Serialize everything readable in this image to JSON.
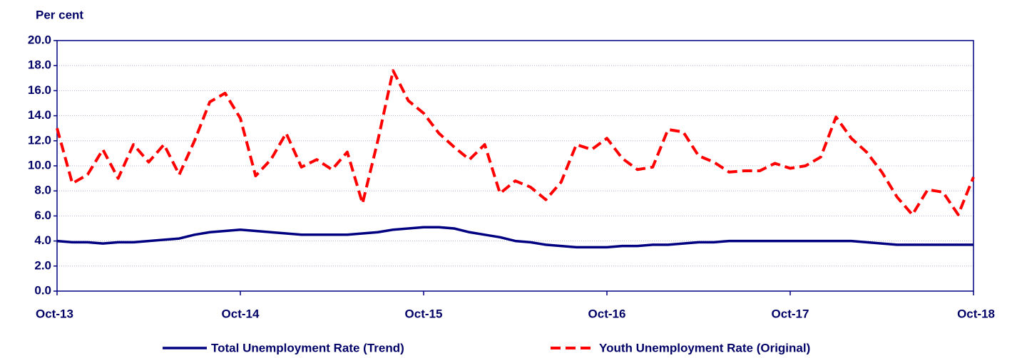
{
  "chart_data": {
    "type": "line",
    "y_label": "Per cent",
    "categories": [
      "Oct-13",
      null,
      null,
      null,
      null,
      null,
      null,
      null,
      null,
      null,
      null,
      null,
      "Oct-14",
      null,
      null,
      null,
      null,
      null,
      null,
      null,
      null,
      null,
      null,
      null,
      "Oct-15",
      null,
      null,
      null,
      null,
      null,
      null,
      null,
      null,
      null,
      null,
      null,
      "Oct-16",
      null,
      null,
      null,
      null,
      null,
      null,
      null,
      null,
      null,
      null,
      null,
      "Oct-17",
      null,
      null,
      null,
      null,
      null,
      null,
      null,
      null,
      null,
      null,
      null,
      "Oct-18"
    ],
    "series": [
      {
        "name": "Total Unemployment Rate (Trend)",
        "color": "#000080",
        "dashed": false,
        "values": [
          4.0,
          3.9,
          3.9,
          3.8,
          3.9,
          3.9,
          4.0,
          4.1,
          4.2,
          4.5,
          4.7,
          4.8,
          4.9,
          4.8,
          4.7,
          4.6,
          4.5,
          4.5,
          4.5,
          4.5,
          4.6,
          4.7,
          4.9,
          5.0,
          5.1,
          5.1,
          5.0,
          4.7,
          4.5,
          4.3,
          4.0,
          3.9,
          3.7,
          3.6,
          3.5,
          3.5,
          3.5,
          3.6,
          3.6,
          3.7,
          3.7,
          3.8,
          3.9,
          3.9,
          4.0,
          4.0,
          4.0,
          4.0,
          4.0,
          4.0,
          4.0,
          4.0,
          4.0,
          3.9,
          3.8,
          3.7,
          3.7,
          3.7,
          3.7,
          3.7,
          3.7
        ]
      },
      {
        "name": "Youth Unemployment Rate (Original)",
        "color": "#ff0000",
        "dashed": true,
        "values": [
          13.0,
          8.6,
          9.3,
          11.3,
          9.0,
          11.7,
          10.3,
          11.7,
          9.3,
          12.0,
          15.1,
          15.8,
          13.8,
          9.2,
          10.5,
          12.6,
          9.9,
          10.5,
          9.7,
          11.1,
          7.0,
          12.0,
          17.6,
          15.2,
          14.2,
          12.6,
          11.5,
          10.5,
          11.7,
          7.8,
          8.8,
          8.3,
          7.3,
          8.7,
          11.7,
          11.3,
          12.2,
          10.6,
          9.7,
          9.9,
          12.9,
          12.7,
          10.8,
          10.3,
          9.5,
          9.6,
          9.6,
          10.2,
          9.8,
          10.0,
          10.7,
          13.9,
          12.2,
          11.1,
          9.5,
          7.5,
          6.1,
          8.1,
          7.9,
          6.1,
          9.1
        ]
      }
    ],
    "ylim": [
      0,
      20
    ],
    "yticks": [
      {
        "value": 0,
        "label": "0.0"
      },
      {
        "value": 2,
        "label": "2.0"
      },
      {
        "value": 4,
        "label": "4.0"
      },
      {
        "value": 6,
        "label": "6.0"
      },
      {
        "value": 8,
        "label": "8.0"
      },
      {
        "value": 10,
        "label": "10.0"
      },
      {
        "value": 12,
        "label": "12.0"
      },
      {
        "value": 14,
        "label": "14.0"
      },
      {
        "value": 16,
        "label": "16.0"
      },
      {
        "value": 18,
        "label": "18.0"
      },
      {
        "value": 20,
        "label": "20.0"
      }
    ],
    "grid": true
  }
}
